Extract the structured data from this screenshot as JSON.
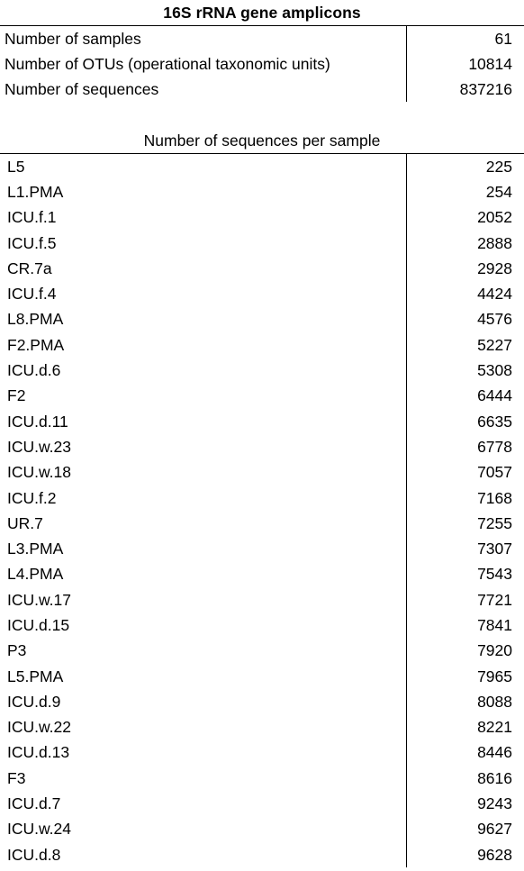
{
  "title": "16S rRNA gene amplicons",
  "summary": [
    {
      "label": "Number of samples",
      "value": "61"
    },
    {
      "label": "Number of OTUs (operational taxonomic units)",
      "value": "10814"
    },
    {
      "label": "Number of sequences",
      "value": "837216"
    }
  ],
  "samples_title": "Number of sequences per sample",
  "samples": [
    {
      "name": "L5",
      "count": "225"
    },
    {
      "name": "L1.PMA",
      "count": "254"
    },
    {
      "name": "ICU.f.1",
      "count": "2052"
    },
    {
      "name": "ICU.f.5",
      "count": "2888"
    },
    {
      "name": "CR.7a",
      "count": "2928"
    },
    {
      "name": "ICU.f.4",
      "count": "4424"
    },
    {
      "name": "L8.PMA",
      "count": "4576"
    },
    {
      "name": "F2.PMA",
      "count": "5227"
    },
    {
      "name": "ICU.d.6",
      "count": "5308"
    },
    {
      "name": "F2",
      "count": "6444"
    },
    {
      "name": "ICU.d.11",
      "count": "6635"
    },
    {
      "name": "ICU.w.23",
      "count": "6778"
    },
    {
      "name": "ICU.w.18",
      "count": "7057"
    },
    {
      "name": "ICU.f.2",
      "count": "7168"
    },
    {
      "name": "UR.7",
      "count": "7255"
    },
    {
      "name": "L3.PMA",
      "count": "7307"
    },
    {
      "name": "L4.PMA",
      "count": "7543"
    },
    {
      "name": "ICU.w.17",
      "count": "7721"
    },
    {
      "name": "ICU.d.15",
      "count": "7841"
    },
    {
      "name": "P3",
      "count": "7920"
    },
    {
      "name": "L5.PMA",
      "count": "7965"
    },
    {
      "name": "ICU.d.9",
      "count": "8088"
    },
    {
      "name": "ICU.w.22",
      "count": "8221"
    },
    {
      "name": "ICU.d.13",
      "count": "8446"
    },
    {
      "name": "F3",
      "count": "8616"
    },
    {
      "name": "ICU.d.7",
      "count": "9243"
    },
    {
      "name": "ICU.w.24",
      "count": "9627"
    },
    {
      "name": "ICU.d.8",
      "count": "9628"
    }
  ]
}
